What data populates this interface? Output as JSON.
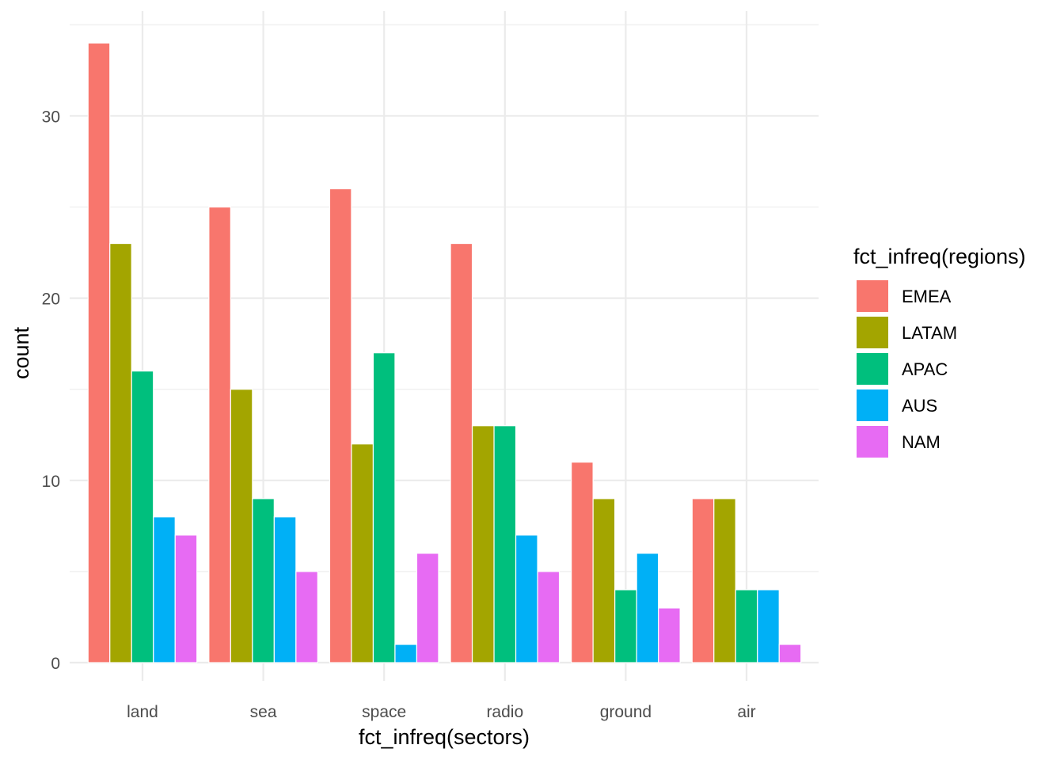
{
  "chart_data": {
    "type": "bar",
    "xlabel": "fct_infreq(sectors)",
    "ylabel": "count",
    "legend_title": "fct_infreq(regions)",
    "legend_position": "right",
    "grid": true,
    "ylim": [
      0,
      35
    ],
    "y_ticks": [
      0,
      10,
      20,
      30
    ],
    "categories": [
      "land",
      "sea",
      "space",
      "radio",
      "ground",
      "air"
    ],
    "series": [
      {
        "name": "EMEA",
        "color": "#F8766D",
        "values": [
          34,
          25,
          26,
          23,
          11,
          9
        ]
      },
      {
        "name": "LATAM",
        "color": "#A3A500",
        "values": [
          23,
          15,
          12,
          13,
          9,
          9
        ]
      },
      {
        "name": "APAC",
        "color": "#00BF7D",
        "values": [
          16,
          9,
          17,
          13,
          4,
          4
        ]
      },
      {
        "name": "AUS",
        "color": "#00B0F6",
        "values": [
          8,
          8,
          1,
          7,
          6,
          4
        ]
      },
      {
        "name": "NAM",
        "color": "#E76BF3",
        "values": [
          7,
          5,
          6,
          5,
          3,
          1
        ]
      }
    ]
  }
}
